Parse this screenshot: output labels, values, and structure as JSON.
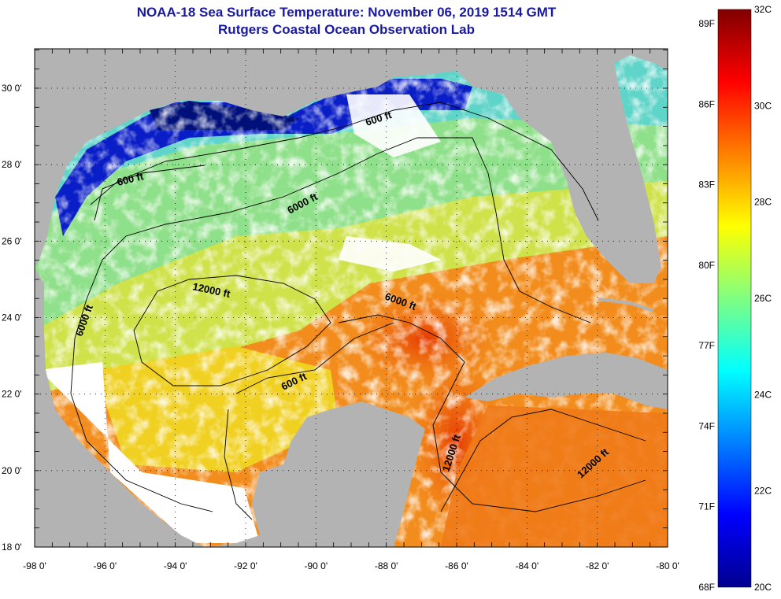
{
  "title": {
    "line1": "NOAA-18 Sea Surface Temperature:  November 06, 2019 1514 GMT",
    "line2": "Rutgers Coastal Ocean Observation Lab"
  },
  "map": {
    "lon_ticks": [
      "-98 0'",
      "-96 0'",
      "-94 0'",
      "-92 0'",
      "-90 0'",
      "-88 0'",
      "-86 0'",
      "-84 0'",
      "-82 0'",
      "-80 0'"
    ],
    "lat_ticks": [
      "30 0'",
      "28 0'",
      "26 0'",
      "24 0'",
      "22 0'",
      "20 0'",
      "18 0'"
    ],
    "contour_labels": [
      "600 ft",
      "600 ft",
      "6000 ft",
      "12000 ft",
      "6000 ft",
      "6000 ft",
      "600 ft",
      "12000 ft",
      "12000 ft"
    ],
    "colors": {
      "land": "#b3b3b3",
      "cloud": "#ffffff",
      "grid": "#000000"
    }
  },
  "colorbar": {
    "fahrenheit": [
      "89F",
      "86F",
      "83F",
      "80F",
      "77F",
      "74F",
      "71F",
      "68F"
    ],
    "celsius": [
      "32C",
      "30C",
      "28C",
      "26C",
      "24C",
      "22C",
      "20C"
    ],
    "colors": [
      "#00008f",
      "#0000ff",
      "#0080ff",
      "#00ffff",
      "#80ff80",
      "#ffff00",
      "#ff8000",
      "#ff0000",
      "#800000"
    ]
  }
}
